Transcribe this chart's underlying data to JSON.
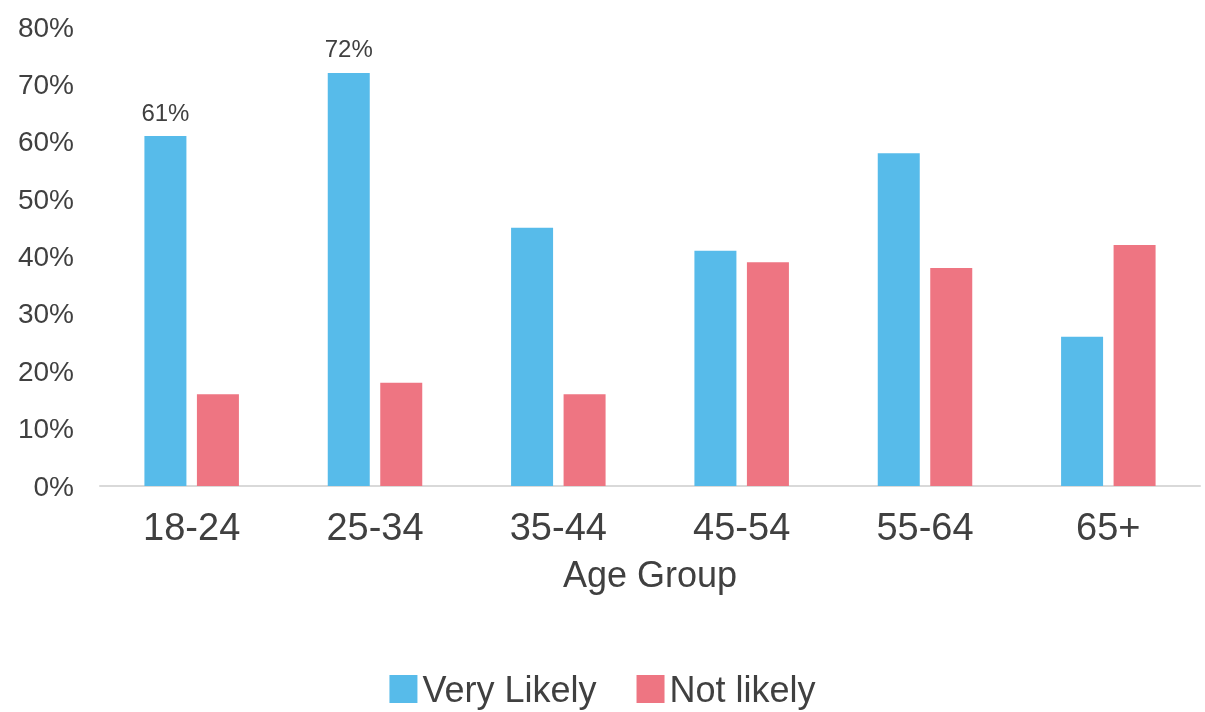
{
  "chart_data": {
    "type": "bar",
    "xlabel": "Age Group",
    "categories": [
      "18-24",
      "25-34",
      "35-44",
      "45-54",
      "55-64",
      "65+"
    ],
    "series": [
      {
        "name": "Very Likely",
        "color": "#57bbea",
        "values": [
          61,
          72,
          45,
          41,
          58,
          26
        ],
        "value_labels": [
          "61%",
          "72%",
          null,
          null,
          null,
          null
        ]
      },
      {
        "name": "Not likely",
        "color": "#ee7582",
        "values": [
          16,
          18,
          16,
          39,
          38,
          42
        ]
      }
    ],
    "ylim": [
      0,
      80
    ],
    "yticks": [
      {
        "value": 0,
        "label": "0%"
      },
      {
        "value": 10,
        "label": "10%"
      },
      {
        "value": 20,
        "label": "20%"
      },
      {
        "value": 30,
        "label": "30%"
      },
      {
        "value": 40,
        "label": "40%"
      },
      {
        "value": 50,
        "label": "50%"
      },
      {
        "value": 60,
        "label": "60%"
      },
      {
        "value": 70,
        "label": "70%"
      },
      {
        "value": 80,
        "label": "80%"
      }
    ],
    "grid": false,
    "legend": "bottom"
  }
}
